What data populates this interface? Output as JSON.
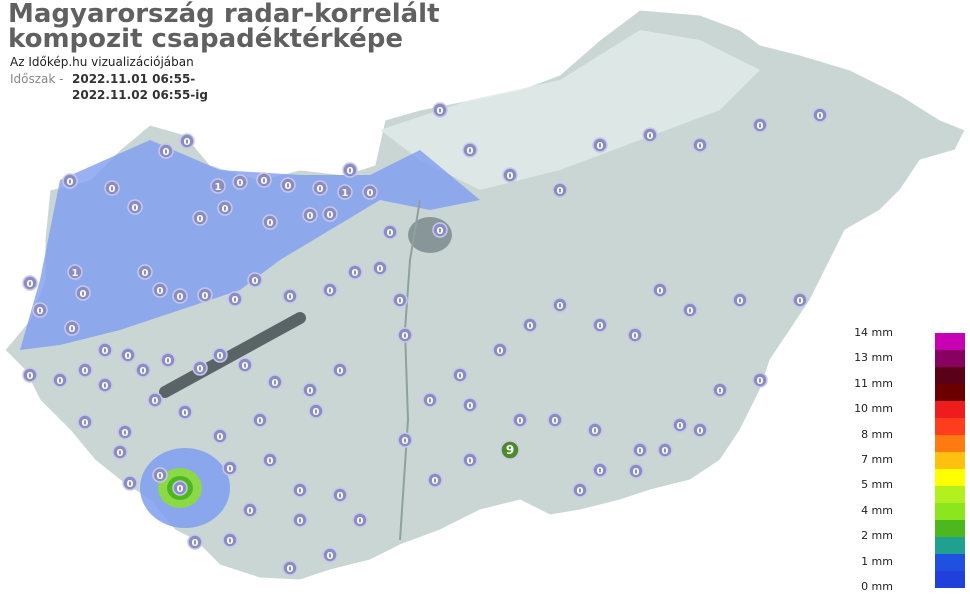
{
  "header": {
    "title_line1": "Magyarország radar-korrelált",
    "title_line2": "kompozit csapadéktérképe",
    "subtitle": "Az Időkép.hu vizualizációjában",
    "period_label": "Időszak -",
    "period_from": "2022.11.01 06:55-",
    "period_to": "2022.11.02 06:55-ig"
  },
  "legend": {
    "labels": [
      "14 mm",
      "13 mm",
      "11 mm",
      "10 mm",
      "8 mm",
      "7 mm",
      "5 mm",
      "4 mm",
      "2 mm",
      "1 mm",
      "0 mm"
    ],
    "colors": [
      "#c800b4",
      "#880060",
      "#5a0018",
      "#6a0000",
      "#ee1c1c",
      "#ff3c1c",
      "#ff7a10",
      "#ffc010",
      "#ffff00",
      "#b4f01e",
      "#8ce61e",
      "#4cb81e",
      "#20a090",
      "#2050e0",
      "#2040dc"
    ]
  },
  "colors": {
    "country": "#c9d6d4",
    "precip_light": "#7f9ef0",
    "marker": "#8a8cc4",
    "lake": "#5a6466"
  },
  "stations": [
    0,
    0,
    0,
    0,
    0,
    0,
    0,
    0,
    0,
    0,
    1,
    1,
    0,
    0,
    0,
    0,
    0,
    0,
    0,
    0,
    1,
    0,
    0,
    0,
    0,
    0,
    0,
    0,
    0,
    0,
    0,
    0,
    0,
    0,
    0,
    0,
    0,
    0,
    0,
    0,
    0,
    0,
    0,
    0,
    0,
    0,
    0,
    0,
    0,
    0,
    0,
    0,
    0,
    0,
    0,
    0,
    0,
    0,
    0,
    0,
    0,
    0,
    0,
    0,
    0,
    0,
    0,
    0,
    0,
    0,
    0,
    0,
    0,
    0,
    0,
    0,
    0,
    0,
    0,
    0,
    0,
    0,
    0,
    0,
    0,
    0,
    0,
    0,
    9,
    0,
    0,
    0,
    0,
    0,
    0,
    0,
    0,
    0,
    0,
    0,
    0,
    0,
    0,
    0,
    0,
    0,
    0,
    0,
    0,
    0
  ]
}
